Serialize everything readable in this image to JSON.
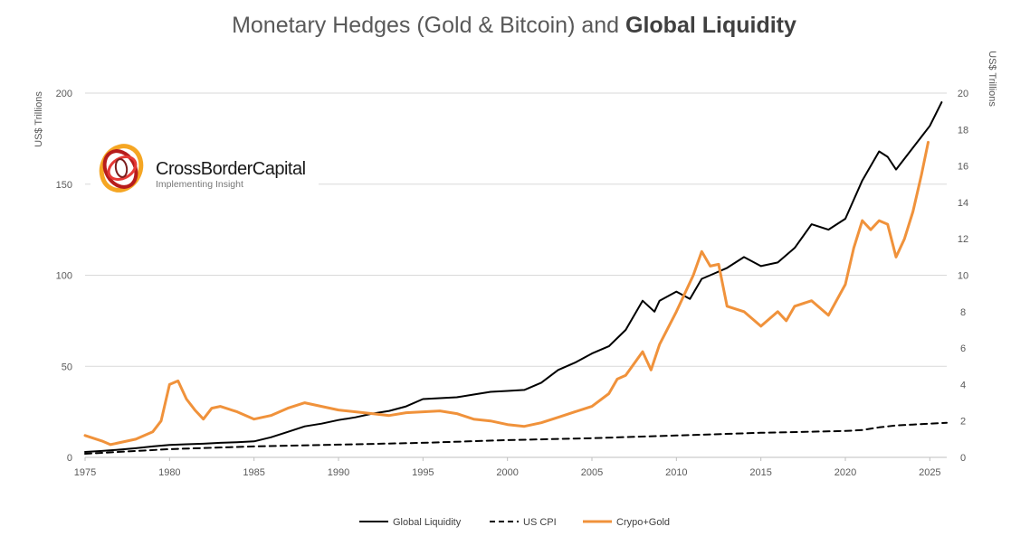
{
  "chart_data": {
    "type": "line",
    "title_regular": "Monetary Hedges (Gold & Bitcoin) and ",
    "title_bold": "Global Liquidity",
    "ylabel_left": "US$ Trillions",
    "ylabel_right": "US$ Trillions",
    "xlim": [
      1975,
      2026
    ],
    "ylim_left": [
      0,
      200
    ],
    "ylim_right": [
      0,
      20
    ],
    "x_ticks": [
      "1975",
      "1980",
      "1985",
      "1990",
      "1995",
      "2000",
      "2005",
      "2010",
      "2015",
      "2020",
      "2025"
    ],
    "y_ticks_left": [
      "0",
      "50",
      "100",
      "150",
      "200"
    ],
    "y_ticks_right": [
      "0",
      "2",
      "4",
      "6",
      "8",
      "10",
      "12",
      "14",
      "16",
      "18",
      "20"
    ],
    "grid": "horizontal",
    "legend_position": "bottom",
    "series": [
      {
        "name": "Global Liquidity",
        "axis": "left",
        "color": "#000000",
        "style": "solid",
        "x": [
          1975,
          1976,
          1977,
          1978,
          1979,
          1980,
          1981,
          1982,
          1983,
          1984,
          1985,
          1986,
          1987,
          1988,
          1989,
          1990,
          1991,
          1992,
          1993,
          1994,
          1995,
          1996,
          1997,
          1998,
          1999,
          2000,
          2001,
          2002,
          2003,
          2004,
          2005,
          2006,
          2007,
          2008,
          2008.7,
          2009,
          2010,
          2010.8,
          2011.5,
          2012,
          2013,
          2014,
          2015,
          2016,
          2017,
          2018,
          2019,
          2020,
          2021,
          2022,
          2022.5,
          2023,
          2024,
          2025,
          2025.7
        ],
        "values": [
          3,
          3.5,
          4.2,
          5,
          6,
          6.8,
          7.2,
          7.5,
          8,
          8.3,
          8.8,
          11,
          14,
          17,
          18.5,
          20.5,
          22,
          24,
          25.5,
          28,
          32,
          32.5,
          33,
          34.5,
          36,
          36.5,
          37,
          41,
          48,
          52,
          57,
          61,
          70,
          86,
          80,
          86,
          91,
          87,
          98,
          100,
          104,
          110,
          105,
          107,
          115,
          128,
          125,
          131,
          152,
          168,
          165,
          158,
          170,
          182,
          195
        ]
      },
      {
        "name": "US CPI",
        "axis": "right",
        "color": "#000000",
        "style": "dashed",
        "x": [
          1975,
          1980,
          1985,
          1990,
          1995,
          2000,
          2005,
          2010,
          2015,
          2020,
          2021,
          2022,
          2023,
          2024,
          2025,
          2026
        ],
        "values": [
          0.2,
          0.45,
          0.6,
          0.7,
          0.8,
          0.95,
          1.05,
          1.2,
          1.35,
          1.45,
          1.5,
          1.65,
          1.75,
          1.8,
          1.85,
          1.9
        ]
      },
      {
        "name": "Crypo+Gold",
        "axis": "right",
        "color": "#f0923b",
        "style": "solid",
        "x": [
          1975,
          1976,
          1976.5,
          1977,
          1978,
          1979,
          1979.5,
          1980,
          1980.5,
          1981,
          1981.5,
          1982,
          1982.5,
          1983,
          1984,
          1985,
          1986,
          1987,
          1988,
          1989,
          1990,
          1991,
          1992,
          1993,
          1994,
          1995,
          1996,
          1997,
          1998,
          1999,
          2000,
          2001,
          2002,
          2003,
          2004,
          2005,
          2006,
          2006.5,
          2007,
          2008,
          2008.5,
          2009,
          2010,
          2011,
          2011.5,
          2012,
          2012.5,
          2013,
          2014,
          2015,
          2016,
          2016.5,
          2017,
          2018,
          2019,
          2020,
          2020.5,
          2021,
          2021.5,
          2022,
          2022.5,
          2023,
          2023.5,
          2024,
          2024.5,
          2024.9
        ],
        "values": [
          1.2,
          0.9,
          0.7,
          0.8,
          1.0,
          1.4,
          2.0,
          4.0,
          4.2,
          3.2,
          2.6,
          2.1,
          2.7,
          2.8,
          2.5,
          2.1,
          2.3,
          2.7,
          3.0,
          2.8,
          2.6,
          2.5,
          2.4,
          2.3,
          2.45,
          2.5,
          2.55,
          2.4,
          2.1,
          2.0,
          1.8,
          1.7,
          1.9,
          2.2,
          2.5,
          2.8,
          3.5,
          4.3,
          4.5,
          5.8,
          4.8,
          6.2,
          8.0,
          10.0,
          11.3,
          10.5,
          10.6,
          8.3,
          8.0,
          7.2,
          8.0,
          7.5,
          8.3,
          8.6,
          7.8,
          9.5,
          11.5,
          13.0,
          12.5,
          13.0,
          12.8,
          11.0,
          12.0,
          13.5,
          15.5,
          17.3
        ]
      }
    ]
  },
  "logo": {
    "brand": "CrossBorderCapital",
    "tagline": "Implementing Insight"
  }
}
